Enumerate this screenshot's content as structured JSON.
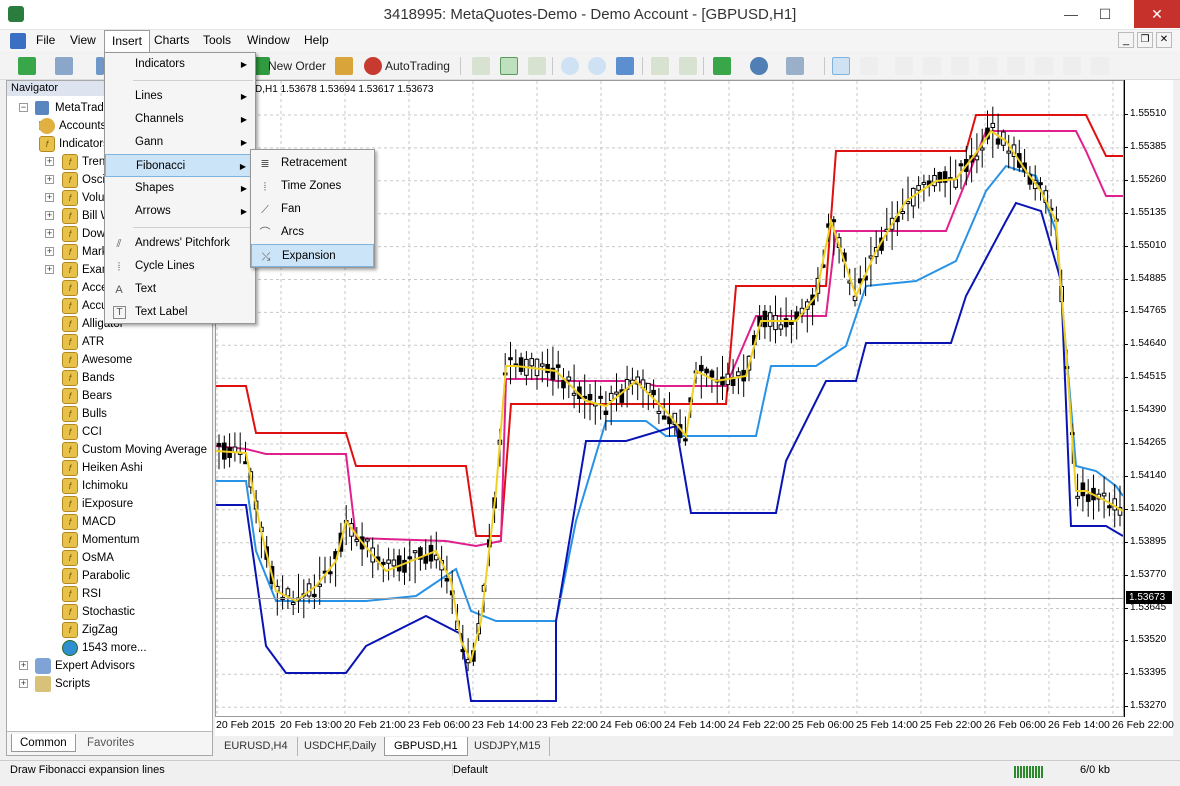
{
  "window": {
    "title": "3418995: MetaQuotes-Demo - Demo Account - [GBPUSD,H1]",
    "minimize": "—",
    "maximize": "☐",
    "close": "✕"
  },
  "menubar": [
    "File",
    "View",
    "Insert",
    "Charts",
    "Tools",
    "Window",
    "Help"
  ],
  "mdi_controls": [
    "_",
    "❐",
    "✕"
  ],
  "toolbar": {
    "new_order": "New Order",
    "autotrading": "AutoTrading"
  },
  "navigator": {
    "title": "Navigator",
    "close": "×",
    "root": "MetaTrader 4",
    "groups": [
      "Accounts",
      "Indicators"
    ],
    "indicator_groups": [
      "Trend",
      "Oscillators",
      "Volumes",
      "Bill Williams",
      "Downloads",
      "Market",
      "Examples"
    ],
    "indicators": [
      "Accelerator Oscillator",
      "Accumulation/Distribution",
      "Alligator",
      "ATR",
      "Awesome",
      "Bands",
      "Bears",
      "Bulls",
      "CCI",
      "Custom Moving Average",
      "Heiken Ashi",
      "Ichimoku",
      "iExposure",
      "MACD",
      "Momentum",
      "OsMA",
      "Parabolic",
      "RSI",
      "Stochastic",
      "ZigZag",
      "1543 more..."
    ],
    "bottom_groups": [
      "Expert Advisors",
      "Scripts"
    ],
    "tabs": [
      "Common",
      "Favorites"
    ]
  },
  "insert_menu": {
    "items": [
      "Indicators",
      "Lines",
      "Channels",
      "Gann",
      "Fibonacci",
      "Shapes",
      "Arrows",
      "Andrews' Pitchfork",
      "Cycle Lines",
      "Text",
      "Text Label"
    ]
  },
  "fibonacci_menu": {
    "items": [
      "Retracement",
      "Time Zones",
      "Fan",
      "Arcs",
      "Expansion"
    ]
  },
  "chart": {
    "info": "GBPUSD,H1  1.53678 1.53694 1.53617 1.53673",
    "current_price": "1.53673",
    "y_labels": [
      "1.55510",
      "1.55385",
      "1.55260",
      "1.55135",
      "1.55010",
      "1.54885",
      "1.54765",
      "1.54640",
      "1.54515",
      "1.54390",
      "1.54265",
      "1.54140",
      "1.54020",
      "1.53895",
      "1.53770",
      "1.53645",
      "1.53520",
      "1.53395",
      "1.53270"
    ],
    "x_labels": [
      "20 Feb 2015",
      "20 Feb 13:00",
      "20 Feb 21:00",
      "23 Feb 06:00",
      "23 Feb 14:00",
      "23 Feb 22:00",
      "24 Feb 06:00",
      "24 Feb 14:00",
      "24 Feb 22:00",
      "25 Feb 06:00",
      "25 Feb 14:00",
      "25 Feb 22:00",
      "26 Feb 06:00",
      "26 Feb 14:00",
      "26 Feb 22:00"
    ],
    "colors": {
      "red": "#e01010",
      "pink": "#e0208c",
      "blue": "#0a14b4",
      "lightblue": "#2892e6",
      "yellow": "#f0d020"
    }
  },
  "chart_tabs": [
    "EURUSD,H4",
    "USDCHF,Daily",
    "GBPUSD,H1",
    "USDJPY,M15"
  ],
  "status": {
    "hint": "Draw Fibonacci expansion lines",
    "profile": "Default",
    "traffic": "6/0 kb"
  }
}
